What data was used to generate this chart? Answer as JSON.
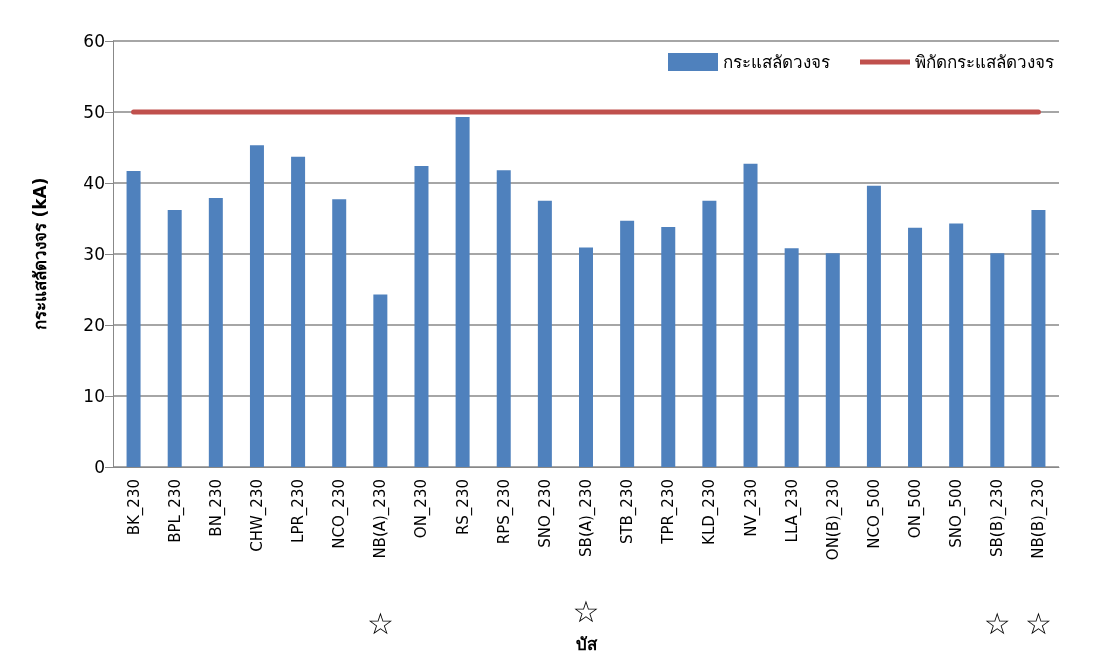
{
  "chart_data": {
    "type": "bar",
    "xlabel": "บัส",
    "ylabel": "กระแสลัดวงจร (kA)",
    "categories": [
      "BK_230",
      "BPL_230",
      "BN_230",
      "CHW_230",
      "LPR_230",
      "NCO_230",
      "NB(A)_230",
      "ON_230",
      "RS_230",
      "RPS_230",
      "SNO_230",
      "SB(A)_230",
      "STB_230",
      "TPR_230",
      "KLD_230",
      "NV_230",
      "LLA_230",
      "ON(B)_230",
      "NCO_500",
      "ON_500",
      "SNO_500",
      "SB(B)_230",
      "NB(B)_230"
    ],
    "series": [
      {
        "name": "กระแสลัดวงจร",
        "color": "#4f81bd",
        "values": [
          41.7,
          36.2,
          37.9,
          45.3,
          43.7,
          37.7,
          24.3,
          42.4,
          49.3,
          41.8,
          37.5,
          30.9,
          34.7,
          33.8,
          37.5,
          42.7,
          30.8,
          30.1,
          39.6,
          33.7,
          34.3,
          30.1,
          36.2
        ]
      },
      {
        "name": "พิกัดกระแสลัดวงจร",
        "type": "line",
        "color": "#c0504d",
        "values": [
          50,
          50,
          50,
          50,
          50,
          50,
          50,
          50,
          50,
          50,
          50,
          50,
          50,
          50,
          50,
          50,
          50,
          50,
          50,
          50,
          50,
          50,
          50
        ]
      }
    ],
    "ylim": [
      0,
      60
    ],
    "yticks": [
      0,
      10,
      20,
      30,
      40,
      50,
      60
    ],
    "grid": "y",
    "legend": "top right",
    "marker": "none",
    "annotations": [
      "☆",
      "☆",
      "☆",
      "☆"
    ]
  }
}
